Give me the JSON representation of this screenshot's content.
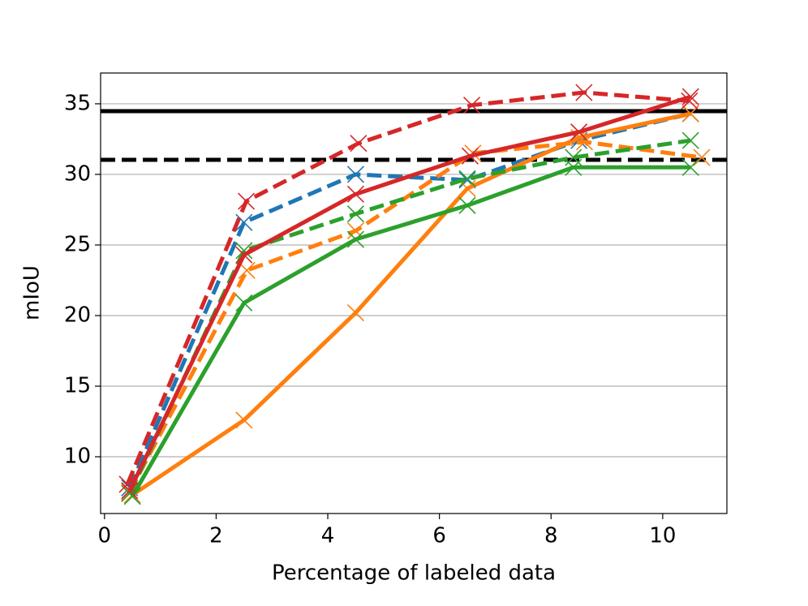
{
  "chart_data": {
    "type": "line",
    "xlabel": "Percentage of labeled data",
    "ylabel": "mIoU",
    "xlim": [
      -0.07,
      11.15
    ],
    "ylim": [
      5.98,
      37.18
    ],
    "xticks": [
      0,
      2,
      4,
      6,
      8,
      10
    ],
    "yticks": [
      10,
      15,
      20,
      25,
      30,
      35
    ],
    "grid": "y",
    "marker": "x",
    "reference_lines": [
      {
        "value": 34.48,
        "color": "#000000",
        "dash": "solid"
      },
      {
        "value": 31.03,
        "color": "#000000",
        "dash": "dashed"
      }
    ],
    "series": [
      {
        "color": "#1f77b4",
        "dash": "dashed",
        "x": [
          0.45,
          2.5,
          4.5,
          6.5,
          8.5,
          10.5
        ],
        "values": [
          7.8,
          26.6,
          30.0,
          29.6,
          32.4,
          34.3
        ]
      },
      {
        "color": "#ff7f0e",
        "dash": "solid",
        "x": [
          0.5,
          2.5,
          4.5,
          6.5,
          8.5,
          10.5
        ],
        "values": [
          7.3,
          12.6,
          20.2,
          29.0,
          32.6,
          34.3
        ]
      },
      {
        "color": "#ff7f0e",
        "dash": "dashed",
        "x": [
          0.45,
          2.55,
          4.5,
          6.6,
          8.6,
          10.7
        ],
        "values": [
          7.5,
          23.2,
          26.0,
          31.5,
          32.3,
          31.2
        ]
      },
      {
        "color": "#2ca02c",
        "dash": "solid",
        "x": [
          0.5,
          2.5,
          4.5,
          6.5,
          8.4,
          10.5
        ],
        "values": [
          7.2,
          20.9,
          25.4,
          27.8,
          30.5,
          30.5
        ]
      },
      {
        "color": "#2ca02c",
        "dash": "dashed",
        "x": [
          0.45,
          2.5,
          4.5,
          6.5,
          8.4,
          10.5
        ],
        "values": [
          7.4,
          24.6,
          27.2,
          29.7,
          31.2,
          32.4
        ]
      },
      {
        "color": "#d62728",
        "dash": "solid",
        "x": [
          0.45,
          2.5,
          4.5,
          6.55,
          8.5,
          10.5
        ],
        "values": [
          7.6,
          24.3,
          28.6,
          31.3,
          33.0,
          35.5
        ]
      },
      {
        "color": "#d62728",
        "dash": "dashed",
        "x": [
          0.41,
          2.54,
          4.55,
          6.58,
          8.59,
          10.48
        ],
        "values": [
          8.05,
          28.1,
          32.2,
          34.9,
          35.8,
          35.2
        ]
      }
    ]
  }
}
